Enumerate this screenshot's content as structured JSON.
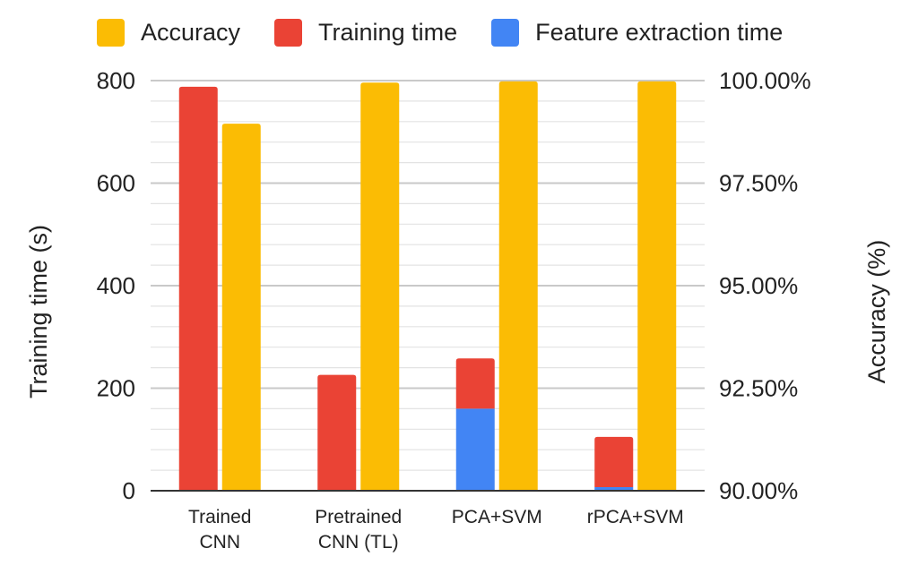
{
  "chart_data": {
    "type": "bar",
    "categories": [
      [
        "Trained",
        "CNN"
      ],
      [
        "Pretrained",
        "CNN (TL)"
      ],
      [
        "PCA+SVM"
      ],
      [
        "rPCA+SVM"
      ]
    ],
    "series": [
      {
        "name": "Accuracy",
        "color": "#FBBC04",
        "axis": "right",
        "values": [
          98.95,
          99.95,
          99.98,
          99.98
        ]
      },
      {
        "name": "Training time",
        "color": "#EA4335",
        "axis": "left",
        "stack": "time",
        "values": [
          788,
          226,
          98,
          98
        ]
      },
      {
        "name": "Feature extraction time",
        "color": "#4285F4",
        "axis": "left",
        "stack": "time",
        "values": [
          0,
          0,
          160,
          7
        ]
      }
    ],
    "legend_order": [
      "Accuracy",
      "Training time",
      "Feature extraction time"
    ],
    "legend_position": "top",
    "ylabel_left": "Training time (s)",
    "ylabel_right": "Accuracy (%)",
    "ylim_left": [
      0,
      800
    ],
    "ylim_right": [
      90,
      100
    ],
    "left_ticks": [
      "0",
      "200",
      "400",
      "600",
      "800"
    ],
    "right_ticks": [
      "90.00%",
      "92.50%",
      "95.00%",
      "97.50%",
      "100.00%"
    ],
    "grid": true
  }
}
